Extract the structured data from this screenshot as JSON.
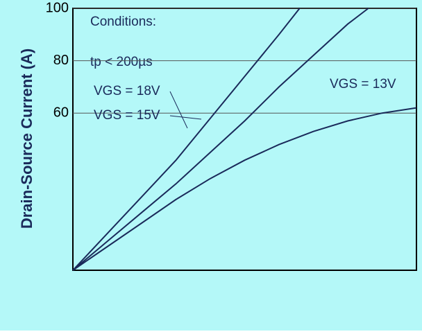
{
  "chart_data": {
    "type": "line",
    "y_label": "Drain-Source Current (A)",
    "annotations": [
      "Conditions:",
      "tp < 200µs"
    ],
    "xlim": [
      0,
      10
    ],
    "ylim": [
      0,
      100
    ],
    "yticks": [
      60,
      80,
      100
    ],
    "grid": true,
    "series": [
      {
        "name": "VGS = 18V",
        "color": "#1a2a5a",
        "x": [
          0,
          1,
          2,
          3,
          4,
          5,
          6,
          6.6
        ],
        "values": [
          0,
          14,
          28,
          42,
          58,
          74,
          90,
          100
        ]
      },
      {
        "name": "VGS = 15V",
        "color": "#1a2a5a",
        "x": [
          0,
          1,
          2,
          3,
          4,
          5,
          6,
          7,
          8,
          8.6
        ],
        "values": [
          0,
          11,
          22,
          33,
          45,
          57,
          70,
          82,
          94,
          100
        ]
      },
      {
        "name": "VGS = 13V",
        "color": "#1a2a5a",
        "x": [
          0,
          1,
          2,
          3,
          4,
          5,
          6,
          7,
          8,
          9,
          10
        ],
        "values": [
          0,
          9,
          18,
          27,
          35,
          42,
          48,
          53,
          57,
          60,
          62
        ]
      }
    ]
  }
}
